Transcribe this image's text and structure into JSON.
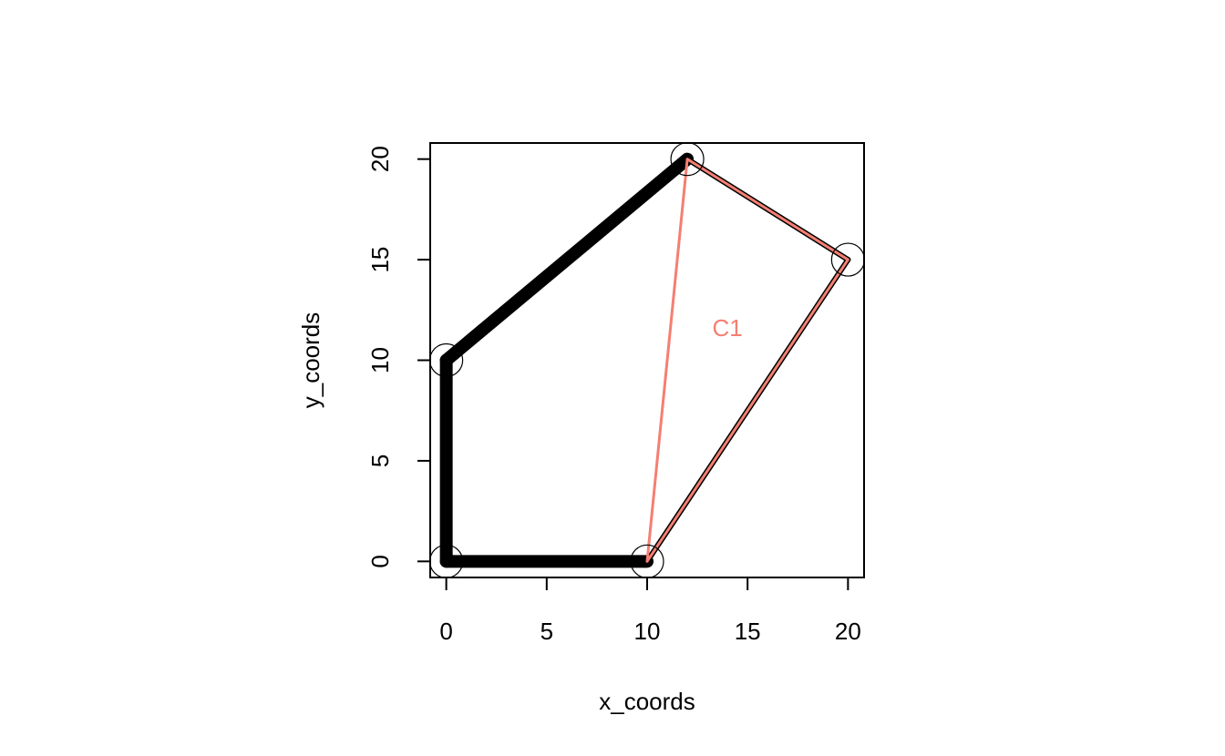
{
  "chart_data": {
    "type": "scatter",
    "title": "",
    "xlabel": "x_coords",
    "ylabel": "y_coords",
    "xlim": [
      -0.8,
      20.8
    ],
    "ylim": [
      -0.8,
      20.8
    ],
    "x_ticks": [
      0,
      5,
      10,
      15,
      20
    ],
    "y_ticks": [
      0,
      5,
      10,
      15,
      20
    ],
    "x_tick_labels": [
      "0",
      "5",
      "10",
      "15",
      "20"
    ],
    "y_tick_labels": [
      "0",
      "5",
      "10",
      "15",
      "20"
    ],
    "grid": false,
    "points": [
      {
        "x": 0,
        "y": 0
      },
      {
        "x": 10,
        "y": 0
      },
      {
        "x": 20,
        "y": 15
      },
      {
        "x": 12,
        "y": 20
      },
      {
        "x": 0,
        "y": 10
      }
    ],
    "hull_polygon": {
      "vertices": [
        [
          0,
          0
        ],
        [
          10,
          0
        ],
        [
          20,
          15
        ],
        [
          12,
          20
        ],
        [
          0,
          10
        ]
      ],
      "color": "#000000"
    },
    "cluster_polygon": {
      "name": "C1",
      "vertices": [
        [
          10,
          0
        ],
        [
          20,
          15
        ],
        [
          12,
          20
        ]
      ],
      "color": "#f47f72",
      "label_position": [
        14,
        11.6
      ]
    }
  },
  "colors": {
    "axis": "#000000",
    "background": "#ffffff",
    "cluster": "#f47f72"
  }
}
